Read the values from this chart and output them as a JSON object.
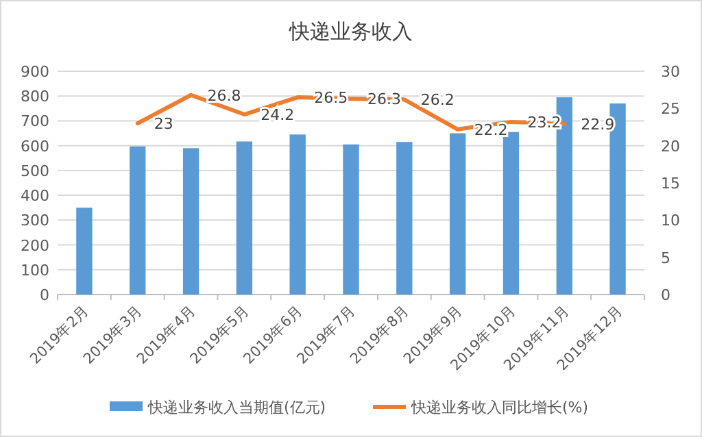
{
  "chart_data": {
    "type": "bar",
    "title": "快递业务收入",
    "categories": [
      "2019年2月",
      "2019年3月",
      "2019年4月",
      "2019年5月",
      "2019年6月",
      "2019年7月",
      "2019年8月",
      "2019年9月",
      "2019年10月",
      "2019年11月",
      "2019年12月"
    ],
    "series": [
      {
        "name": "快递业务收入当期值(亿元)",
        "color": "#5b9bd5",
        "values": [
          350,
          597,
          590,
          617,
          645,
          605,
          615,
          650,
          655,
          795,
          770
        ]
      },
      {
        "name": "快递业务收入同比增长(%)",
        "type": "line",
        "axis": "y2",
        "color": "#ed7d31",
        "values": [
          null,
          23,
          26.8,
          24.2,
          26.5,
          26.3,
          26.2,
          22.2,
          23.2,
          22.9,
          null
        ],
        "value_labels": [
          null,
          "23",
          "26.8",
          "24.2",
          "26.5",
          "26.3",
          "26.2",
          "22.2",
          "23.2",
          "22.9",
          null
        ]
      }
    ],
    "ylim": [
      0,
      900
    ],
    "yticks": [
      0,
      100,
      200,
      300,
      400,
      500,
      600,
      700,
      800,
      900
    ],
    "y2lim": [
      0,
      30
    ],
    "y2ticks": [
      0,
      5,
      10,
      15,
      20,
      25,
      30
    ],
    "grid": "y",
    "legend": "bottom"
  }
}
